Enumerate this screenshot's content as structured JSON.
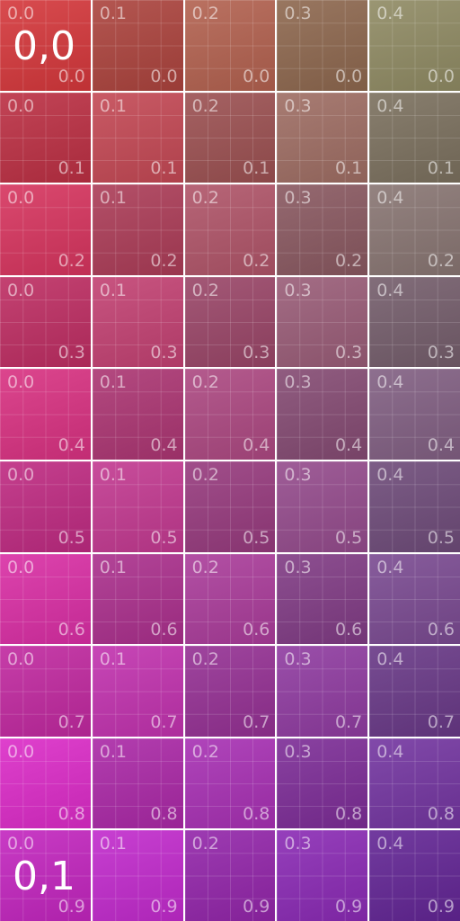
{
  "grid": {
    "cols": [
      {
        "u": "0.0"
      },
      {
        "u": "0.1"
      },
      {
        "u": "0.2"
      },
      {
        "u": "0.3"
      },
      {
        "u": "0.4"
      }
    ],
    "rows": [
      {
        "v": "0.0"
      },
      {
        "v": "0.1"
      },
      {
        "v": "0.2"
      },
      {
        "v": "0.3"
      },
      {
        "v": "0.4"
      },
      {
        "v": "0.5"
      },
      {
        "v": "0.6"
      },
      {
        "v": "0.7"
      },
      {
        "v": "0.8"
      },
      {
        "v": "0.9"
      }
    ]
  },
  "corners": {
    "top_left": "0,0",
    "bottom_left": "0,1"
  },
  "colors": {
    "gradient_top_left": "#d4373b",
    "gradient_top_right": "#8f8a63",
    "gradient_bottom_left": "#dc2ad8",
    "gradient_bottom_right": "#6f2aa8",
    "separator": "#ffffff",
    "label": "#ffffff"
  }
}
